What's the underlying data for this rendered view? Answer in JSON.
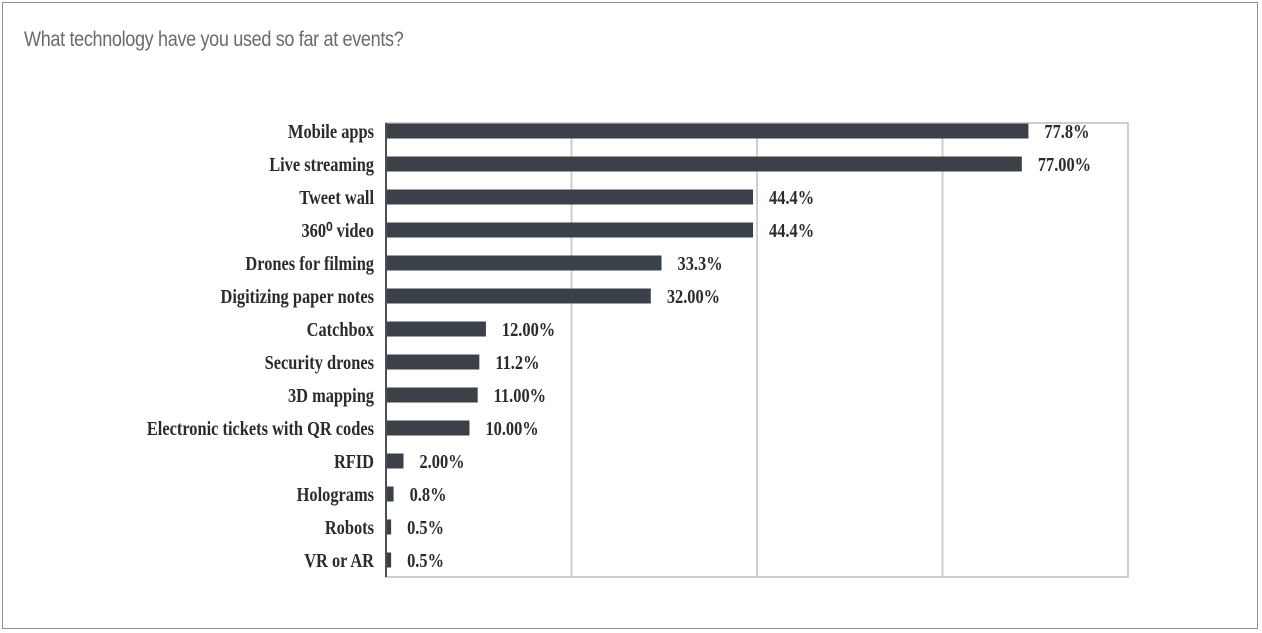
{
  "chart_data": {
    "type": "bar",
    "orientation": "horizontal",
    "title": "What technology have you used so far at events?",
    "categories": [
      "Mobile apps",
      "Live streaming",
      "Tweet wall",
      "360⁰ video",
      "Drones for filming",
      "Digitizing paper notes",
      "Catchbox",
      "Security drones",
      "3D mapping",
      "Electronic tickets with QR codes",
      "RFID",
      "Holograms",
      "Robots",
      "VR or AR"
    ],
    "values": [
      77.8,
      77.0,
      44.4,
      44.4,
      33.3,
      32.0,
      12.0,
      11.2,
      11.0,
      10.0,
      2.0,
      0.8,
      0.5,
      0.5
    ],
    "value_labels": [
      "77.8%",
      "77.00%",
      "44.4%",
      "44.4%",
      "33.3%",
      "32.00%",
      "12.00%",
      "11.2%",
      "11.00%",
      "10.00%",
      "2.00%",
      "0.8%",
      "0.5%",
      "0.5%"
    ],
    "xlim": [
      0,
      90
    ],
    "grid": true,
    "legend": "none",
    "bar_color": "#3a4149",
    "grid_color": "#cfcfcf"
  }
}
